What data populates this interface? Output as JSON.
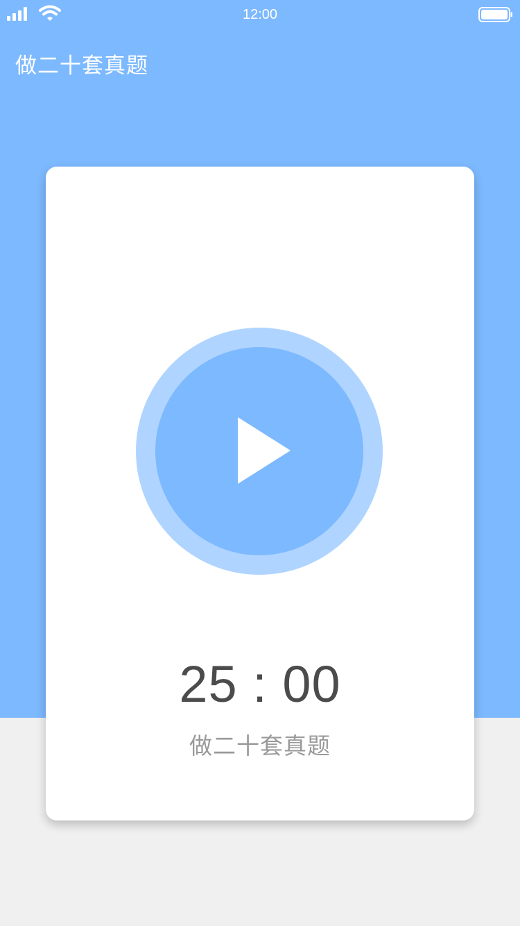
{
  "status_bar": {
    "time": "12:00",
    "signal_icon": "cellular-signal-icon",
    "wifi_icon": "wifi-icon",
    "battery_icon": "battery-icon"
  },
  "header": {
    "title": "做二十套真题"
  },
  "timer_card": {
    "play_icon": "play-icon",
    "time": "25 : 00",
    "task": "做二十套真题"
  },
  "colors": {
    "primary": "#7db9fe",
    "ring": "#afd4ff",
    "page_background": "#f0f0f0",
    "card": "#ffffff",
    "timer_text": "#4b4b4b",
    "label_text": "#9a9a9a"
  }
}
